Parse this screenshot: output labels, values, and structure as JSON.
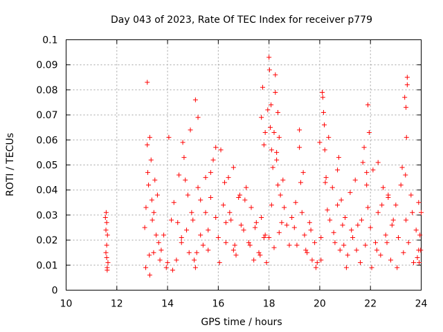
{
  "chart_data": {
    "type": "scatter",
    "title": "Day 043 of 2023, Rate Of TEC Index for receiver p779",
    "xlabel": "GPS time / hours",
    "ylabel": "ROTI / TECUs",
    "xlim": [
      10,
      24
    ],
    "ylim": [
      0,
      0.1
    ],
    "xticks": [
      "10",
      "12",
      "14",
      "16",
      "18",
      "20",
      "22",
      "24"
    ],
    "yticks": [
      "0",
      "0.01",
      "0.02",
      "0.03",
      "0.04",
      "0.05",
      "0.06",
      "0.07",
      "0.08",
      "0.09",
      "0.1"
    ],
    "grid": true,
    "marker": "+",
    "color": "#ff0000",
    "series": [
      {
        "name": "ROTI",
        "x": [
          11.55,
          11.57,
          11.58,
          11.6,
          11.6,
          11.62,
          11.63,
          11.65,
          11.57,
          11.6,
          11.62,
          13.1,
          13.15,
          13.2,
          13.25,
          13.3,
          13.35,
          13.4,
          13.45,
          13.5,
          13.55,
          13.6,
          13.65,
          13.7,
          13.14,
          13.22,
          13.3,
          13.38,
          13.46,
          13.2,
          13.28,
          13.75,
          13.85,
          13.95,
          14.05,
          14.15,
          14.25,
          14.35,
          14.45,
          14.55,
          14.65,
          14.75,
          14.85,
          14.95,
          14.0,
          14.2,
          14.4,
          14.6,
          14.8,
          14.55,
          14.7,
          14.9,
          15.0,
          15.1,
          15.2,
          15.3,
          15.4,
          15.5,
          15.6,
          15.7,
          15.8,
          15.9,
          15.05,
          15.1,
          15.15,
          15.3,
          15.5,
          15.7,
          15.9,
          15.2,
          15.6,
          16.0,
          16.1,
          16.2,
          16.3,
          16.4,
          16.5,
          16.6,
          16.7,
          16.8,
          16.9,
          16.05,
          16.25,
          16.45,
          16.65,
          16.85,
          16.3,
          16.6,
          17.0,
          17.1,
          17.2,
          17.3,
          17.4,
          17.5,
          17.6,
          17.7,
          17.8,
          17.9,
          17.05,
          17.25,
          17.45,
          17.65,
          17.85,
          17.7,
          17.75,
          17.8,
          17.85,
          17.95,
          18.0,
          18.02,
          18.05,
          18.08,
          18.1,
          18.15,
          18.2,
          18.25,
          18.3,
          18.35,
          18.4,
          18.45,
          18.5,
          18.55,
          18.6,
          18.7,
          18.8,
          18.9,
          18.0,
          18.1,
          18.2,
          18.3,
          18.4,
          18.25,
          18.35,
          19.0,
          19.1,
          19.2,
          19.3,
          19.4,
          19.5,
          19.6,
          19.7,
          19.8,
          19.9,
          19.05,
          19.25,
          19.45,
          19.65,
          19.85,
          19.2,
          19.35,
          20.0,
          20.05,
          20.1,
          20.15,
          20.2,
          20.25,
          20.3,
          20.4,
          20.5,
          20.6,
          20.7,
          20.8,
          20.9,
          20.05,
          20.35,
          20.55,
          20.75,
          20.95,
          20.12,
          20.18,
          20.22,
          20.7,
          20.85,
          21.0,
          21.1,
          21.2,
          21.3,
          21.4,
          21.5,
          21.6,
          21.7,
          21.8,
          21.9,
          21.05,
          21.25,
          21.45,
          21.65,
          21.85,
          21.9,
          21.95,
          21.75,
          21.85,
          22.0,
          22.1,
          22.2,
          22.3,
          22.4,
          22.5,
          22.6,
          22.7,
          22.8,
          22.9,
          22.05,
          22.25,
          22.45,
          22.65,
          22.85,
          22.3,
          22.7,
          23.0,
          23.1,
          23.2,
          23.3,
          23.4,
          23.5,
          23.6,
          23.7,
          23.8,
          23.9,
          23.05,
          23.25,
          23.45,
          23.65,
          23.85,
          23.35,
          23.4,
          23.42,
          23.45,
          23.38,
          23.9,
          23.95,
          24.0,
          23.92,
          23.98
        ],
        "values": [
          0.029,
          0.024,
          0.031,
          0.018,
          0.013,
          0.009,
          0.022,
          0.011,
          0.015,
          0.027,
          0.008,
          0.025,
          0.033,
          0.083,
          0.042,
          0.061,
          0.052,
          0.028,
          0.015,
          0.044,
          0.022,
          0.038,
          0.019,
          0.012,
          0.009,
          0.047,
          0.006,
          0.036,
          0.031,
          0.058,
          0.014,
          0.016,
          0.022,
          0.009,
          0.061,
          0.028,
          0.035,
          0.012,
          0.046,
          0.019,
          0.053,
          0.024,
          0.015,
          0.031,
          0.011,
          0.008,
          0.027,
          0.059,
          0.038,
          0.021,
          0.044,
          0.064,
          0.028,
          0.076,
          0.069,
          0.036,
          0.018,
          0.045,
          0.024,
          0.037,
          0.052,
          0.029,
          0.012,
          0.009,
          0.015,
          0.022,
          0.031,
          0.047,
          0.057,
          0.041,
          0.016,
          0.021,
          0.056,
          0.034,
          0.019,
          0.045,
          0.028,
          0.049,
          0.014,
          0.037,
          0.026,
          0.011,
          0.043,
          0.031,
          0.018,
          0.038,
          0.027,
          0.016,
          0.024,
          0.041,
          0.019,
          0.033,
          0.012,
          0.027,
          0.015,
          0.029,
          0.021,
          0.011,
          0.036,
          0.018,
          0.025,
          0.014,
          0.022,
          0.069,
          0.081,
          0.058,
          0.063,
          0.072,
          0.093,
          0.088,
          0.065,
          0.074,
          0.056,
          0.049,
          0.063,
          0.079,
          0.055,
          0.042,
          0.061,
          0.038,
          0.027,
          0.044,
          0.033,
          0.026,
          0.018,
          0.029,
          0.021,
          0.034,
          0.017,
          0.052,
          0.023,
          0.086,
          0.071,
          0.025,
          0.018,
          0.064,
          0.031,
          0.022,
          0.015,
          0.027,
          0.012,
          0.019,
          0.011,
          0.035,
          0.043,
          0.016,
          0.024,
          0.009,
          0.057,
          0.047,
          0.059,
          0.021,
          0.079,
          0.071,
          0.056,
          0.045,
          0.032,
          0.028,
          0.041,
          0.019,
          0.034,
          0.016,
          0.026,
          0.012,
          0.061,
          0.023,
          0.053,
          0.018,
          0.077,
          0.066,
          0.043,
          0.048,
          0.036,
          0.029,
          0.014,
          0.039,
          0.021,
          0.044,
          0.026,
          0.011,
          0.051,
          0.018,
          0.033,
          0.009,
          0.024,
          0.016,
          0.028,
          0.047,
          0.074,
          0.063,
          0.057,
          0.042,
          0.025,
          0.048,
          0.019,
          0.031,
          0.014,
          0.041,
          0.022,
          0.037,
          0.012,
          0.028,
          0.009,
          0.016,
          0.034,
          0.019,
          0.026,
          0.051,
          0.038,
          0.034,
          0.021,
          0.042,
          0.015,
          0.028,
          0.019,
          0.038,
          0.011,
          0.024,
          0.016,
          0.009,
          0.049,
          0.085,
          0.031,
          0.013,
          0.077,
          0.073,
          0.061,
          0.082,
          0.046,
          0.035,
          0.022,
          0.031,
          0.011,
          0.016
        ]
      }
    ]
  }
}
